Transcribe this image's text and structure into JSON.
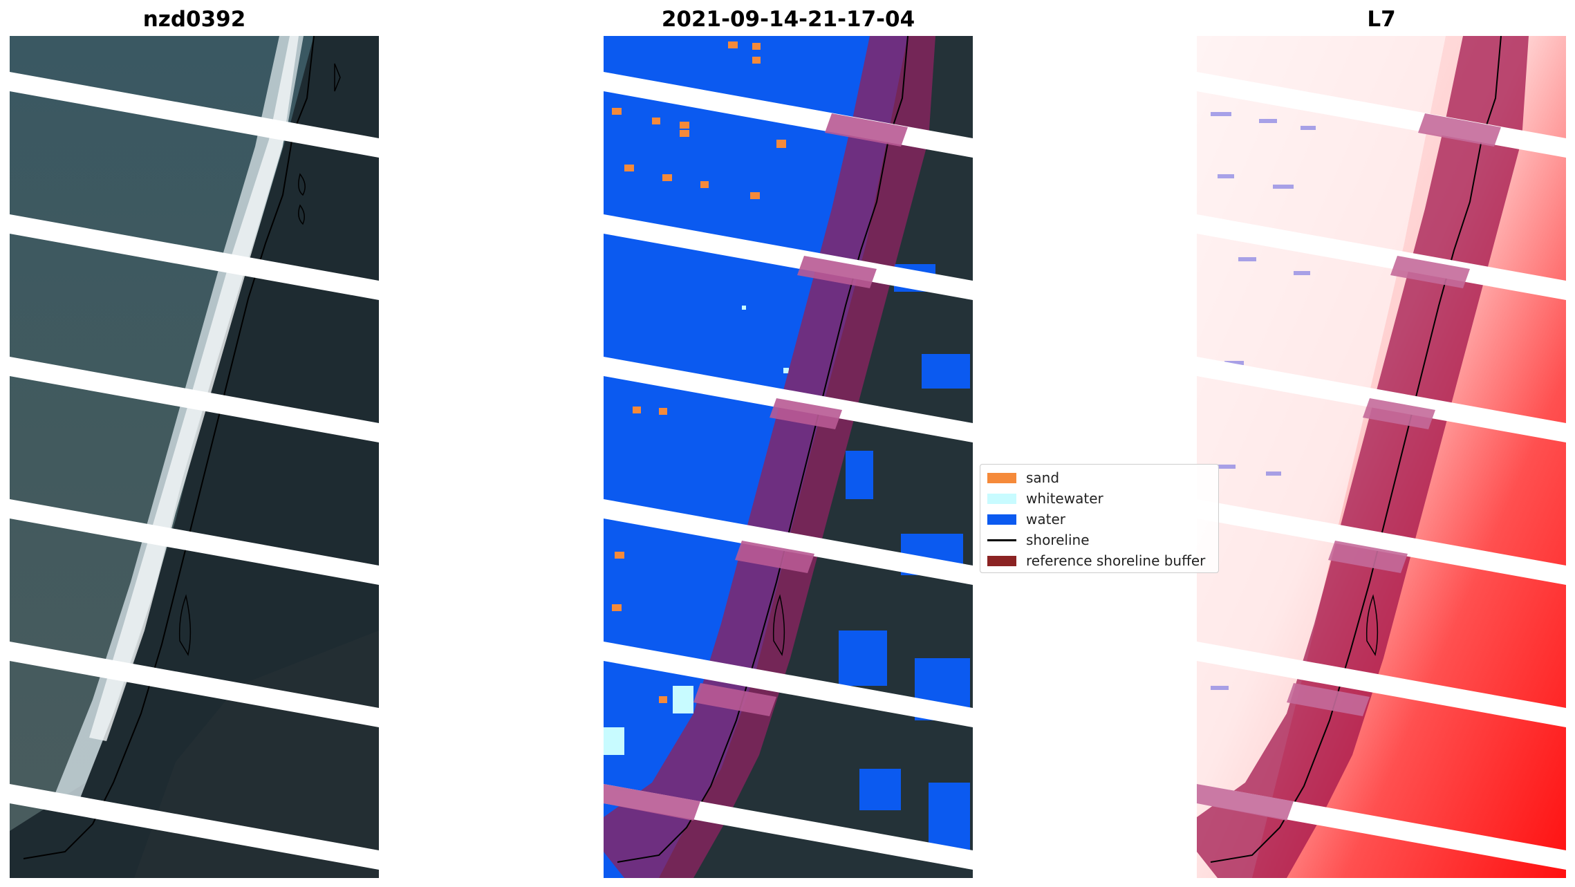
{
  "titles": {
    "left": "nzd0392",
    "center": "2021-09-14-21-17-04",
    "right": "L7"
  },
  "legend": {
    "items": [
      {
        "label": "sand",
        "color": "#f58a3a",
        "kind": "patch"
      },
      {
        "label": "whitewater",
        "color": "#c8fbff",
        "kind": "patch"
      },
      {
        "label": "water",
        "color": "#0b5af0",
        "kind": "patch"
      },
      {
        "label": "shoreline",
        "color": "#000000",
        "kind": "line"
      },
      {
        "label": "reference shoreline buffer",
        "color": "#8b2323",
        "kind": "patch"
      }
    ]
  },
  "colors": {
    "sea_rgb": "#3c5a62",
    "land_rgb": "#1e2d32",
    "surf": "#d8e4e6",
    "water_class": "#0b5af0",
    "buffer": "#8b2360",
    "index_pos": "#ff1a1a",
    "index_neg": "#3b3bd6",
    "stripe": "#ffffff"
  }
}
